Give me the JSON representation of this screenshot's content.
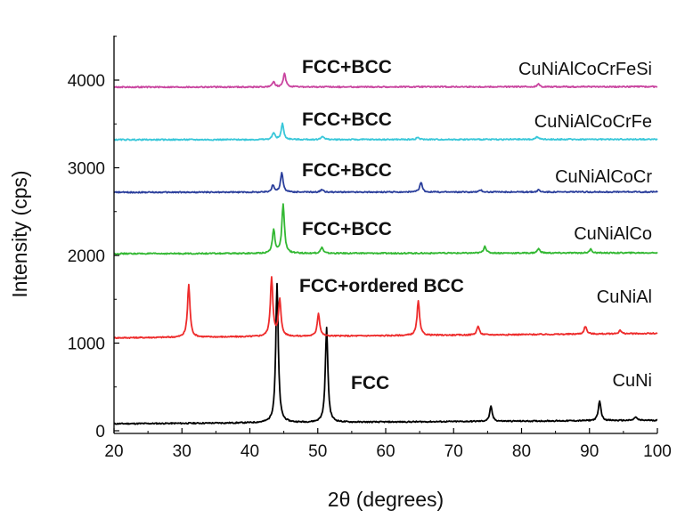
{
  "chart_data": {
    "type": "line",
    "title": "",
    "xlabel": "2θ (degrees)",
    "ylabel": "Intensity (cps)",
    "xlim": [
      20,
      100
    ],
    "ylim": [
      0,
      4500
    ],
    "xticks": [
      20,
      30,
      40,
      50,
      60,
      70,
      80,
      90,
      100
    ],
    "yticks": [
      0,
      1000,
      2000,
      3000,
      4000
    ],
    "xtick_labels": [
      "20",
      "30",
      "40",
      "50",
      "60",
      "70",
      "80",
      "90",
      "100"
    ],
    "ytick_labels": [
      "0",
      "1000",
      "2000",
      "3000",
      "4000"
    ],
    "grid": false,
    "series": [
      {
        "name": "CuNi",
        "phase": "FCC",
        "color": "#000000",
        "baseline_start": 80,
        "baseline_end": 120,
        "peaks": [
          [
            44.0,
            1580
          ],
          [
            51.3,
            1080
          ],
          [
            75.5,
            170
          ],
          [
            91.5,
            230
          ],
          [
            96.8,
            40
          ]
        ]
      },
      {
        "name": "CuNiAl",
        "phase": "FCC+ordered BCC",
        "color": "#ee2b2b",
        "baseline_start": 1060,
        "baseline_end": 1110,
        "peaks": [
          [
            31.0,
            600
          ],
          [
            43.2,
            670
          ],
          [
            44.4,
            420
          ],
          [
            50.1,
            260
          ],
          [
            64.8,
            390
          ],
          [
            73.6,
            100
          ],
          [
            89.4,
            90
          ],
          [
            94.5,
            40
          ]
        ]
      },
      {
        "name": "CuNiAlCo",
        "phase": "FCC+BCC",
        "color": "#33b833",
        "baseline_start": 2020,
        "baseline_end": 2030,
        "peaks": [
          [
            43.5,
            270
          ],
          [
            44.9,
            560
          ],
          [
            50.6,
            70
          ],
          [
            74.6,
            80
          ],
          [
            82.5,
            50
          ],
          [
            90.2,
            40
          ]
        ]
      },
      {
        "name": "CuNiAlCoCr",
        "phase": "FCC+BCC",
        "color": "#2b3f9c",
        "baseline_start": 2720,
        "baseline_end": 2725,
        "peaks": [
          [
            43.4,
            80
          ],
          [
            44.7,
            220
          ],
          [
            50.6,
            30
          ],
          [
            65.2,
            110
          ],
          [
            74.0,
            25
          ],
          [
            82.5,
            25
          ]
        ]
      },
      {
        "name": "CuNiAlCoCrFe",
        "phase": "FCC+BCC",
        "color": "#38c7d9",
        "baseline_start": 3320,
        "baseline_end": 3325,
        "peaks": [
          [
            43.5,
            80
          ],
          [
            44.8,
            180
          ],
          [
            50.7,
            40
          ],
          [
            64.7,
            25
          ],
          [
            82.3,
            30
          ]
        ]
      },
      {
        "name": "CuNiAlCoCrFeSi",
        "phase": "FCC+BCC",
        "color": "#c9449f",
        "baseline_start": 3920,
        "baseline_end": 3925,
        "peaks": [
          [
            43.5,
            60
          ],
          [
            45.1,
            150
          ],
          [
            82.5,
            30
          ]
        ]
      }
    ]
  }
}
